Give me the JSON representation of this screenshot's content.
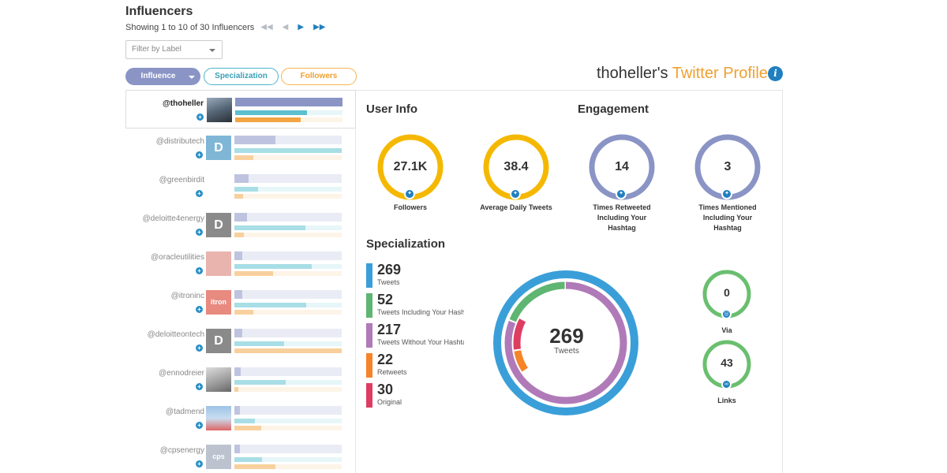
{
  "header": {
    "title": "Influencers",
    "showing": "Showing 1 to 10 of 30 Influencers",
    "filter_placeholder": "Filter by Label"
  },
  "sort_pills": {
    "influence": "Influence",
    "specialization": "Specialization",
    "followers": "Followers"
  },
  "profile": {
    "username": "thoheller's",
    "title_suffix": "Twitter Profile"
  },
  "influencers": [
    {
      "handle": "@thoheller",
      "selected": true,
      "influence": 1.0,
      "specialization": 0.67,
      "followers": 0.61
    },
    {
      "handle": "@distributech",
      "selected": false,
      "influence": 0.38,
      "specialization": 1.0,
      "followers": 0.18
    },
    {
      "handle": "@greenbirdit",
      "selected": false,
      "influence": 0.13,
      "specialization": 0.22,
      "followers": 0.08
    },
    {
      "handle": "@deloitte4energy",
      "selected": false,
      "influence": 0.12,
      "specialization": 0.66,
      "followers": 0.09
    },
    {
      "handle": "@oracleutilities",
      "selected": false,
      "influence": 0.07,
      "specialization": 0.72,
      "followers": 0.36
    },
    {
      "handle": "@itroninc",
      "selected": false,
      "influence": 0.07,
      "specialization": 0.67,
      "followers": 0.18
    },
    {
      "handle": "@deloitteontech",
      "selected": false,
      "influence": 0.07,
      "specialization": 0.46,
      "followers": 1.0
    },
    {
      "handle": "@ennodreier",
      "selected": false,
      "influence": 0.06,
      "specialization": 0.48,
      "followers": 0.04
    },
    {
      "handle": "@tadmend",
      "selected": false,
      "influence": 0.05,
      "specialization": 0.19,
      "followers": 0.25
    },
    {
      "handle": "@cpsenergy",
      "selected": false,
      "influence": 0.05,
      "specialization": 0.26,
      "followers": 0.38
    }
  ],
  "user_info": {
    "heading": "User Info",
    "followers": {
      "value": "27.1K",
      "label": "Followers"
    },
    "avg_daily": {
      "value": "38.4",
      "label": "Average Daily Tweets"
    }
  },
  "engagement": {
    "heading": "Engagement",
    "retweeted": {
      "value": "14",
      "label_1": "Times Retweeted",
      "label_2": "Including Your",
      "label_3": "Hashtag"
    },
    "mentioned": {
      "value": "3",
      "label_1": "Times Mentioned",
      "label_2": "Including Your",
      "label_3": "Hashtag"
    }
  },
  "specialization": {
    "heading": "Specialization",
    "items": [
      {
        "value": "269",
        "label": "Tweets",
        "color": "#3a9fd8"
      },
      {
        "value": "52",
        "label": "Tweets Including Your Hashtag",
        "color": "#5fb572"
      },
      {
        "value": "217",
        "label": "Tweets Without Your Hashtag",
        "color": "#b07ab8"
      },
      {
        "value": "22",
        "label": "Retweets",
        "color": "#f5842a"
      },
      {
        "value": "30",
        "label": "Original",
        "color": "#de3d62"
      }
    ],
    "center_value": "269",
    "center_label": "Tweets",
    "via": {
      "value": "0",
      "label": "Via"
    },
    "links": {
      "value": "43",
      "label": "Links"
    }
  },
  "colors": {
    "influence": "#8a94c5",
    "specialization": "#5cc0cf",
    "followers": "#f2a542",
    "user_ring": "#f5b800",
    "engage_ring": "#8a94c5",
    "small_ring": "#6abf6f"
  }
}
